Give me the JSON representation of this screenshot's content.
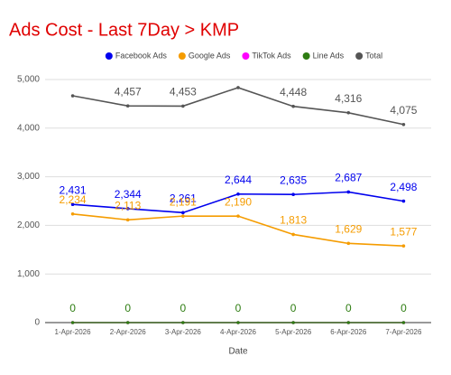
{
  "chart_data": {
    "type": "line",
    "title": "Ads Cost - Last 7Day > KMP",
    "x_label": "Date",
    "categories": [
      "1-Apr-2026",
      "2-Apr-2026",
      "3-Apr-2026",
      "4-Apr-2026",
      "5-Apr-2026",
      "6-Apr-2026",
      "7-Apr-2026"
    ],
    "series": [
      {
        "name": "Facebook Ads",
        "color": "#0000ee",
        "data_labels": true,
        "values": [
          2431,
          2344,
          2261,
          2644,
          2635,
          2687,
          2498
        ],
        "value_labels": [
          "2,431",
          "2,344",
          "2,261",
          "2,644",
          "2,635",
          "2,687",
          "2,498"
        ]
      },
      {
        "name": "Google Ads",
        "color": "#f59c00",
        "data_labels": true,
        "values": [
          2234,
          2113,
          2191,
          2190,
          1813,
          1629,
          1577
        ],
        "value_labels": [
          "2,234",
          "2,113",
          "2,191",
          "2,190",
          "1,813",
          "1,629",
          "1,577"
        ]
      },
      {
        "name": "TikTok Ads",
        "color": "#ff00ff",
        "data_labels": false,
        "values": [
          0,
          0,
          0,
          0,
          0,
          0,
          0
        ]
      },
      {
        "name": "Line Ads",
        "color": "#2e7d12",
        "data_labels": true,
        "values": [
          0,
          0,
          0,
          0,
          0,
          0,
          0
        ]
      },
      {
        "name": "Total",
        "color": "#555555",
        "data_labels": true,
        "values": [
          4665,
          4457,
          4453,
          4834,
          4448,
          4316,
          4075
        ],
        "value_labels": [
          null,
          "4,457",
          "4,453",
          null,
          "4,448",
          "4,316",
          "4,075"
        ]
      }
    ],
    "ylim": [
      0,
      5000
    ],
    "yticks": [
      0,
      {
        "value": 1000,
        "label": "1,000"
      },
      {
        "value": 2000,
        "label": "2,000"
      },
      {
        "value": 3000,
        "label": "3,000"
      },
      {
        "value": 4000,
        "label": "4,000"
      },
      {
        "value": 5000,
        "label": "5,000"
      }
    ],
    "grid": true,
    "legend": "top",
    "title_color": "#e00000"
  }
}
